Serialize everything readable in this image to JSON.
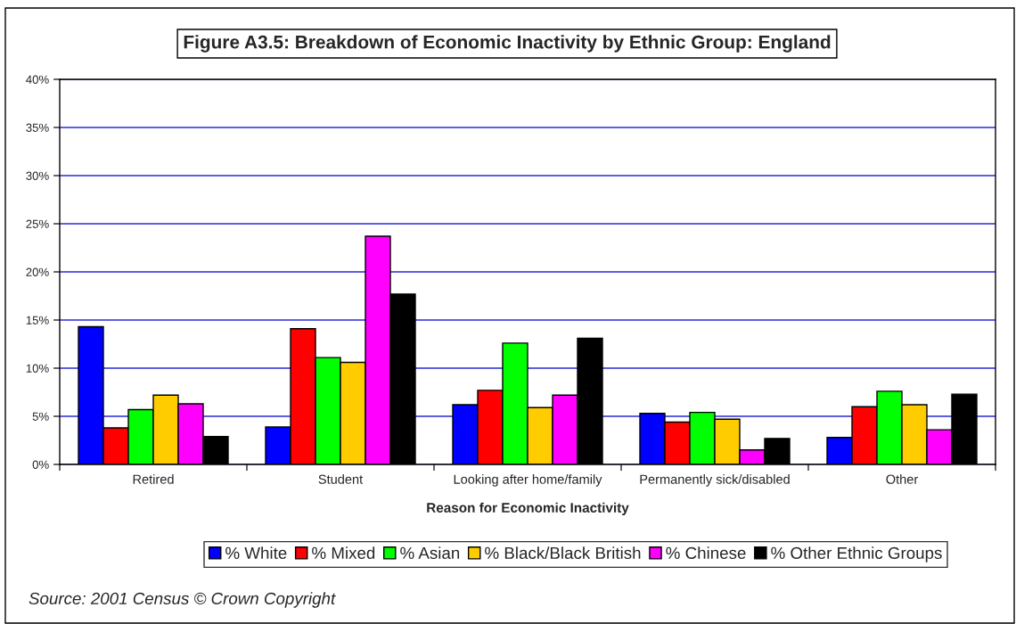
{
  "chart_data": {
    "type": "bar",
    "title": "Figure A3.5: Breakdown of Economic Inactivity by Ethnic Group: England",
    "xlabel": "Reason for Economic Inactivity",
    "categories": [
      "Retired",
      "Student",
      "Looking after home/family",
      "Permanently sick/disabled",
      "Other"
    ],
    "series": [
      {
        "name": "% White",
        "color": "#0000ff",
        "values": [
          14.3,
          3.9,
          6.2,
          5.3,
          2.8
        ]
      },
      {
        "name": "% Mixed",
        "color": "#ff0000",
        "values": [
          3.8,
          14.1,
          7.7,
          4.4,
          6.0
        ]
      },
      {
        "name": "% Asian",
        "color": "#00ff00",
        "values": [
          5.7,
          11.1,
          12.6,
          5.4,
          7.6
        ]
      },
      {
        "name": "% Black/Black British",
        "color": "#ffcc00",
        "values": [
          7.2,
          10.6,
          5.9,
          4.7,
          6.2
        ]
      },
      {
        "name": "% Chinese",
        "color": "#ff00ff",
        "values": [
          6.3,
          23.7,
          7.2,
          1.5,
          3.6
        ]
      },
      {
        "name": "% Other Ethnic Groups",
        "color": "#000000",
        "values": [
          2.9,
          17.7,
          13.1,
          2.7,
          7.3
        ]
      }
    ],
    "ylim": [
      0,
      40
    ],
    "yticks": [
      {
        "value": 0,
        "label": "0%"
      },
      {
        "value": 5,
        "label": "5%"
      },
      {
        "value": 10,
        "label": "10%"
      },
      {
        "value": 15,
        "label": "15%"
      },
      {
        "value": 20,
        "label": "20%"
      },
      {
        "value": 25,
        "label": "25%"
      },
      {
        "value": 30,
        "label": "30%"
      },
      {
        "value": 35,
        "label": "35%"
      },
      {
        "value": 40,
        "label": "40%"
      }
    ],
    "grid": "y",
    "legend": "bottom",
    "annotations": [
      "Source: 2001 Census © Crown Copyright"
    ]
  }
}
